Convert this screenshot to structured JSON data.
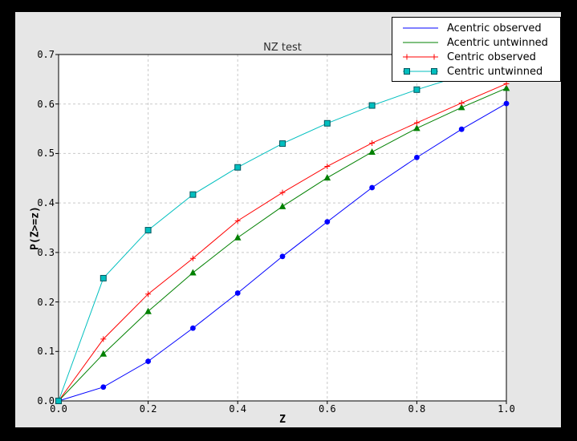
{
  "figure": {
    "frame_color": "#000000",
    "facecolor": "#e6e6e6",
    "plot_facecolor": "#ffffff",
    "spine_color": "#000000",
    "grid_color": "#c9c9c9"
  },
  "chart_data": {
    "type": "line",
    "title": "NZ test",
    "xlabel": "Z",
    "ylabel": "P(Z>=z)",
    "xlim": [
      0.0,
      1.0
    ],
    "ylim": [
      0.0,
      0.7
    ],
    "xticks": [
      "0.0",
      "0.2",
      "0.4",
      "0.6",
      "0.8",
      "1.0"
    ],
    "yticks": [
      "0.0",
      "0.1",
      "0.2",
      "0.3",
      "0.4",
      "0.5",
      "0.6",
      "0.7"
    ],
    "grid": true,
    "legend_position": "upper right",
    "x": [
      0.0,
      0.1,
      0.2,
      0.3,
      0.4,
      0.5,
      0.6,
      0.7,
      0.8,
      0.9,
      1.0
    ],
    "series": [
      {
        "name": "Acentric observed",
        "color": "#0000ff",
        "marker": "circle",
        "marker_edge": "#0000b0",
        "legend_markers": 0,
        "values": [
          0.0,
          0.028,
          0.08,
          0.147,
          0.218,
          0.292,
          0.362,
          0.431,
          0.492,
          0.549,
          0.601
        ]
      },
      {
        "name": "Acentric untwinned",
        "color": "#008000",
        "marker": "triangle-up",
        "marker_edge": "#005c00",
        "legend_markers": 0,
        "values": [
          0.0,
          0.095,
          0.181,
          0.259,
          0.33,
          0.393,
          0.451,
          0.503,
          0.551,
          0.593,
          0.632
        ]
      },
      {
        "name": "Centric observed",
        "color": "#ff0000",
        "marker": "plus",
        "marker_edge": "#ff0000",
        "legend_markers": 2,
        "values": [
          0.0,
          0.125,
          0.216,
          0.288,
          0.364,
          0.421,
          0.474,
          0.521,
          0.562,
          0.602,
          0.641
        ]
      },
      {
        "name": "Centric untwinned",
        "color": "#00bfbf",
        "marker": "square",
        "marker_edge": "#00565e",
        "legend_markers": 2,
        "values": [
          0.0,
          0.248,
          0.345,
          0.417,
          0.472,
          0.52,
          0.561,
          0.597,
          0.629,
          0.657,
          0.683
        ]
      }
    ]
  }
}
